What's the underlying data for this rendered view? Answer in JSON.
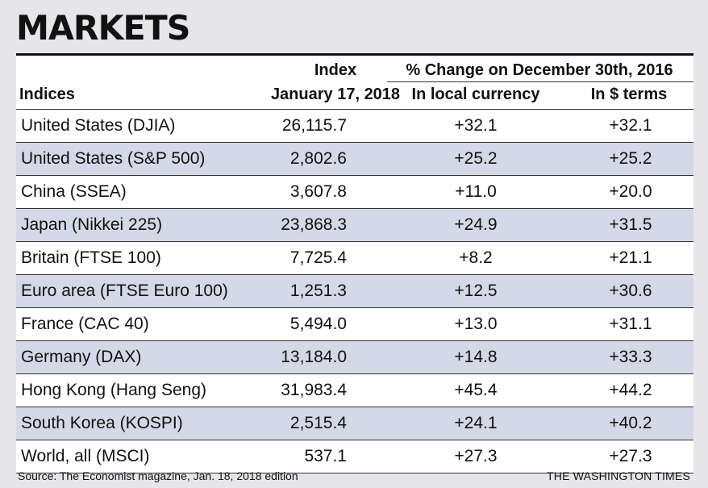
{
  "title": "MARKETS",
  "header": {
    "indices": "Indices",
    "index_top": "Index",
    "index_bottom": "January 17, 2018",
    "pct_change": "% Change on December 30th, 2016",
    "local": "In local currency",
    "dollar": "In $ terms"
  },
  "chart_data": {
    "type": "table",
    "title": "MARKETS",
    "columns": [
      "Indices",
      "Index January 17, 2018",
      "% Change on December 30th, 2016 — In local currency",
      "% Change on December 30th, 2016 — In $ terms"
    ],
    "rows": [
      {
        "name": "United States (DJIA)",
        "index": "26,115.7",
        "local": "+32.1",
        "usd": "+32.1"
      },
      {
        "name": "United States (S&P 500)",
        "index": "2,802.6",
        "local": "+25.2",
        "usd": "+25.2"
      },
      {
        "name": "China (SSEA)",
        "index": "3,607.8",
        "local": "+11.0",
        "usd": "+20.0"
      },
      {
        "name": "Japan (Nikkei 225)",
        "index": "23,868.3",
        "local": "+24.9",
        "usd": "+31.5"
      },
      {
        "name": "Britain (FTSE 100)",
        "index": "7,725.4",
        "local": "+8.2",
        "usd": "+21.1"
      },
      {
        "name": "Euro area (FTSE Euro 100)",
        "index": "1,251.3",
        "local": "+12.5",
        "usd": "+30.6"
      },
      {
        "name": "France (CAC 40)",
        "index": "5,494.0",
        "local": "+13.0",
        "usd": "+31.1"
      },
      {
        "name": "Germany (DAX)",
        "index": "13,184.0",
        "local": "+14.8",
        "usd": "+33.3"
      },
      {
        "name": "Hong Kong (Hang Seng)",
        "index": "31,983.4",
        "local": "+45.4",
        "usd": "+44.2"
      },
      {
        "name": "South Korea (KOSPI)",
        "index": "2,515.4",
        "local": "+24.1",
        "usd": "+40.2"
      },
      {
        "name": "World, all (MSCI)",
        "index": "537.1",
        "local": "+27.3",
        "usd": "+27.3"
      }
    ]
  },
  "footer": {
    "source": "Source: The Economist magazine, Jan. 18, 2018 edition",
    "brand": "THE WASHINGTON TIMES"
  },
  "colors": {
    "background": "#e6e6ea",
    "row_light": "#ffffff",
    "row_shaded": "#d5d8e6",
    "text": "#111111"
  }
}
